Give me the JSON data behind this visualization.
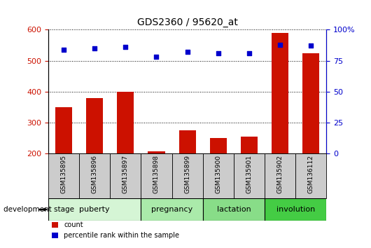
{
  "title": "GDS2360 / 95620_at",
  "samples": [
    "GSM135895",
    "GSM135896",
    "GSM135897",
    "GSM135898",
    "GSM135899",
    "GSM135900",
    "GSM135901",
    "GSM135902",
    "GSM136112"
  ],
  "counts": [
    350,
    380,
    400,
    208,
    275,
    250,
    255,
    590,
    525
  ],
  "percentiles": [
    84,
    85,
    86,
    78,
    82,
    81,
    81,
    88,
    87
  ],
  "ylim_left": [
    200,
    600
  ],
  "ylim_right": [
    0,
    100
  ],
  "yticks_left": [
    200,
    300,
    400,
    500,
    600
  ],
  "yticks_right": [
    0,
    25,
    50,
    75,
    100
  ],
  "groups": [
    {
      "label": "puberty",
      "start": 0,
      "end": 3,
      "color": "#d5f5d5"
    },
    {
      "label": "pregnancy",
      "start": 3,
      "end": 5,
      "color": "#aaeaaa"
    },
    {
      "label": "lactation",
      "start": 5,
      "end": 7,
      "color": "#88dd88"
    },
    {
      "label": "involution",
      "start": 7,
      "end": 9,
      "color": "#44cc44"
    }
  ],
  "bar_color": "#cc1100",
  "scatter_color": "#0000cc",
  "bar_width": 0.55,
  "left_tick_color": "#cc1100",
  "right_tick_color": "#0000cc",
  "sample_box_color": "#cccccc",
  "legend_count_color": "#cc1100",
  "legend_pct_color": "#0000cc"
}
